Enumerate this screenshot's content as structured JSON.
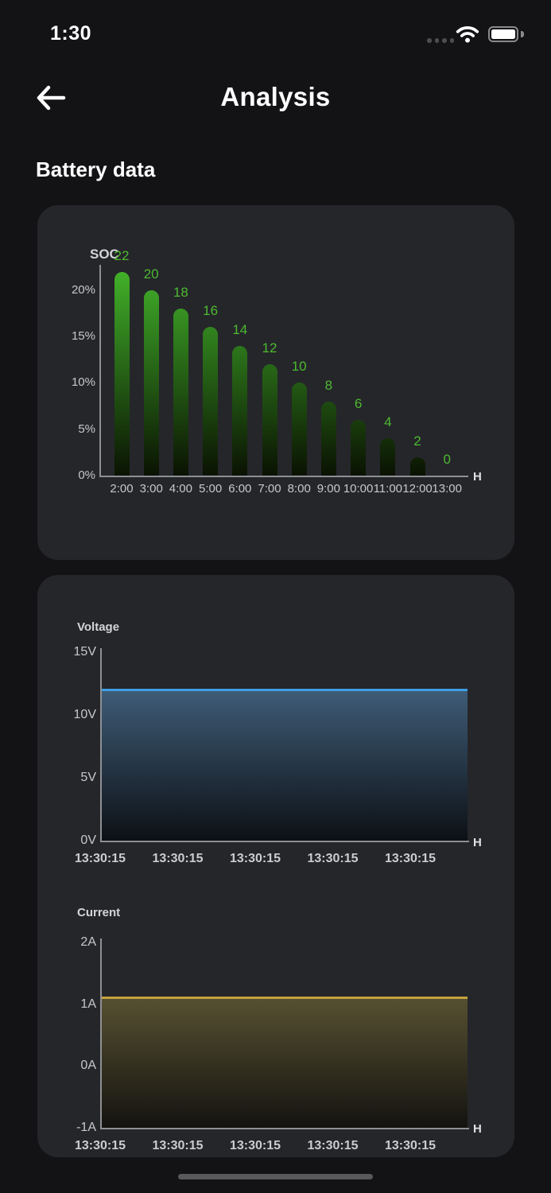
{
  "status_bar": {
    "time": "1:30"
  },
  "header": {
    "title": "Analysis"
  },
  "section_title": "Battery data",
  "chart_data": [
    {
      "type": "bar",
      "title": "SOC",
      "categories": [
        "2:00",
        "3:00",
        "4:00",
        "5:00",
        "6:00",
        "7:00",
        "8:00",
        "9:00",
        "10:00",
        "11:00",
        "12:00",
        "13:00"
      ],
      "values": [
        22,
        20,
        18,
        16,
        14,
        12,
        10,
        8,
        6,
        4,
        2,
        0
      ],
      "yticks": [
        {
          "label": "20%",
          "value": 20
        },
        {
          "label": "15%",
          "value": 15
        },
        {
          "label": "10%",
          "value": 10
        },
        {
          "label": "5%",
          "value": 5
        },
        {
          "label": "0%",
          "value": 0
        }
      ],
      "ylim": [
        0,
        22.3
      ],
      "xlabel": "H",
      "grid": false,
      "bar_label_color": "#4cba30",
      "bar_gradient_top": "#42b22a",
      "bar_gradient_bottom": "#0a1202"
    },
    {
      "type": "area",
      "title": "Voltage",
      "xticks": [
        "13:30:15",
        "13:30:15",
        "13:30:15",
        "13:30:15",
        "13:30:15"
      ],
      "yticks": [
        {
          "label": "15V",
          "value": 15
        },
        {
          "label": "10V",
          "value": 10
        },
        {
          "label": "5V",
          "value": 5
        },
        {
          "label": "0V",
          "value": 0
        }
      ],
      "ylim": [
        0,
        15
      ],
      "value": 12,
      "xlabel": "H",
      "grid": false,
      "line_color": "#3f9ee2",
      "area_top": "#3f5c77",
      "area_bottom": "#0c1015"
    },
    {
      "type": "area",
      "title": "Current",
      "xticks": [
        "13:30:15",
        "13:30:15",
        "13:30:15",
        "13:30:15",
        "13:30:15"
      ],
      "yticks": [
        {
          "label": "2A",
          "value": 2
        },
        {
          "label": "1A",
          "value": 1
        },
        {
          "label": "0A",
          "value": 0
        },
        {
          "label": "-1A",
          "value": -1
        }
      ],
      "ylim": [
        -1,
        2
      ],
      "value": 1.1,
      "xlabel": "H",
      "grid": false,
      "line_color": "#c6a23e",
      "area_top": "#565031",
      "area_bottom": "#141310"
    }
  ]
}
